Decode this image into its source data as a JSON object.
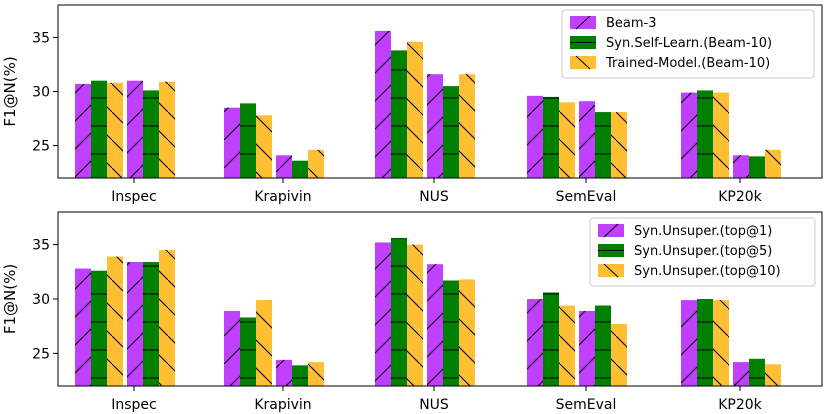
{
  "chart_data": [
    {
      "type": "bar",
      "ylabel": "F1@N(%)",
      "ylim": [
        22,
        38
      ],
      "yticks": [
        25,
        30,
        35
      ],
      "categories": [
        "Inspec",
        "Krapivin",
        "NUS",
        "SemEval",
        "KP20k"
      ],
      "groups_per_category": 2,
      "series": [
        {
          "name": "Beam-3",
          "color": "#bf40ff",
          "hatch": "/",
          "values": [
            [
              30.7,
              31.0
            ],
            [
              28.5,
              24.1
            ],
            [
              35.6,
              31.6
            ],
            [
              29.6,
              29.1
            ],
            [
              29.9,
              24.1
            ]
          ]
        },
        {
          "name": "Syn.Self-Learn.(Beam-10)",
          "color": "#008000",
          "hatch": "-",
          "values": [
            [
              31.0,
              30.1
            ],
            [
              28.9,
              23.6
            ],
            [
              33.8,
              30.5
            ],
            [
              29.5,
              28.1
            ],
            [
              30.1,
              24.0
            ]
          ]
        },
        {
          "name": "Trained-Model.(Beam-10)",
          "color": "#ffbf33",
          "hatch": "\\",
          "values": [
            [
              30.8,
              30.9
            ],
            [
              27.8,
              24.6
            ],
            [
              34.6,
              31.6
            ],
            [
              29.0,
              28.1
            ],
            [
              29.9,
              24.6
            ]
          ]
        }
      ],
      "legend": "top-right"
    },
    {
      "type": "bar",
      "ylabel": "F1@N(%)",
      "ylim": [
        22,
        38
      ],
      "yticks": [
        25,
        30,
        35
      ],
      "categories": [
        "Inspec",
        "Krapivin",
        "NUS",
        "SemEval",
        "KP20k"
      ],
      "groups_per_category": 2,
      "series": [
        {
          "name": "Syn.Unsuper.(top@1)",
          "color": "#bf40ff",
          "hatch": "/",
          "values": [
            [
              32.8,
              33.4
            ],
            [
              28.9,
              24.4
            ],
            [
              35.2,
              33.2
            ],
            [
              30.0,
              28.9
            ],
            [
              29.9,
              24.2
            ]
          ]
        },
        {
          "name": "Syn.Unsuper.(top@5)",
          "color": "#008000",
          "hatch": "-",
          "values": [
            [
              32.6,
              33.4
            ],
            [
              28.3,
              23.9
            ],
            [
              35.6,
              31.7
            ],
            [
              30.6,
              29.4
            ],
            [
              30.0,
              24.5
            ]
          ]
        },
        {
          "name": "Syn.Unsuper.(top@10)",
          "color": "#ffbf33",
          "hatch": "\\",
          "values": [
            [
              33.9,
              34.5
            ],
            [
              29.9,
              24.2
            ],
            [
              35.0,
              31.8
            ],
            [
              29.4,
              27.7
            ],
            [
              29.9,
              24.0
            ]
          ]
        }
      ],
      "legend": "top-right"
    }
  ]
}
